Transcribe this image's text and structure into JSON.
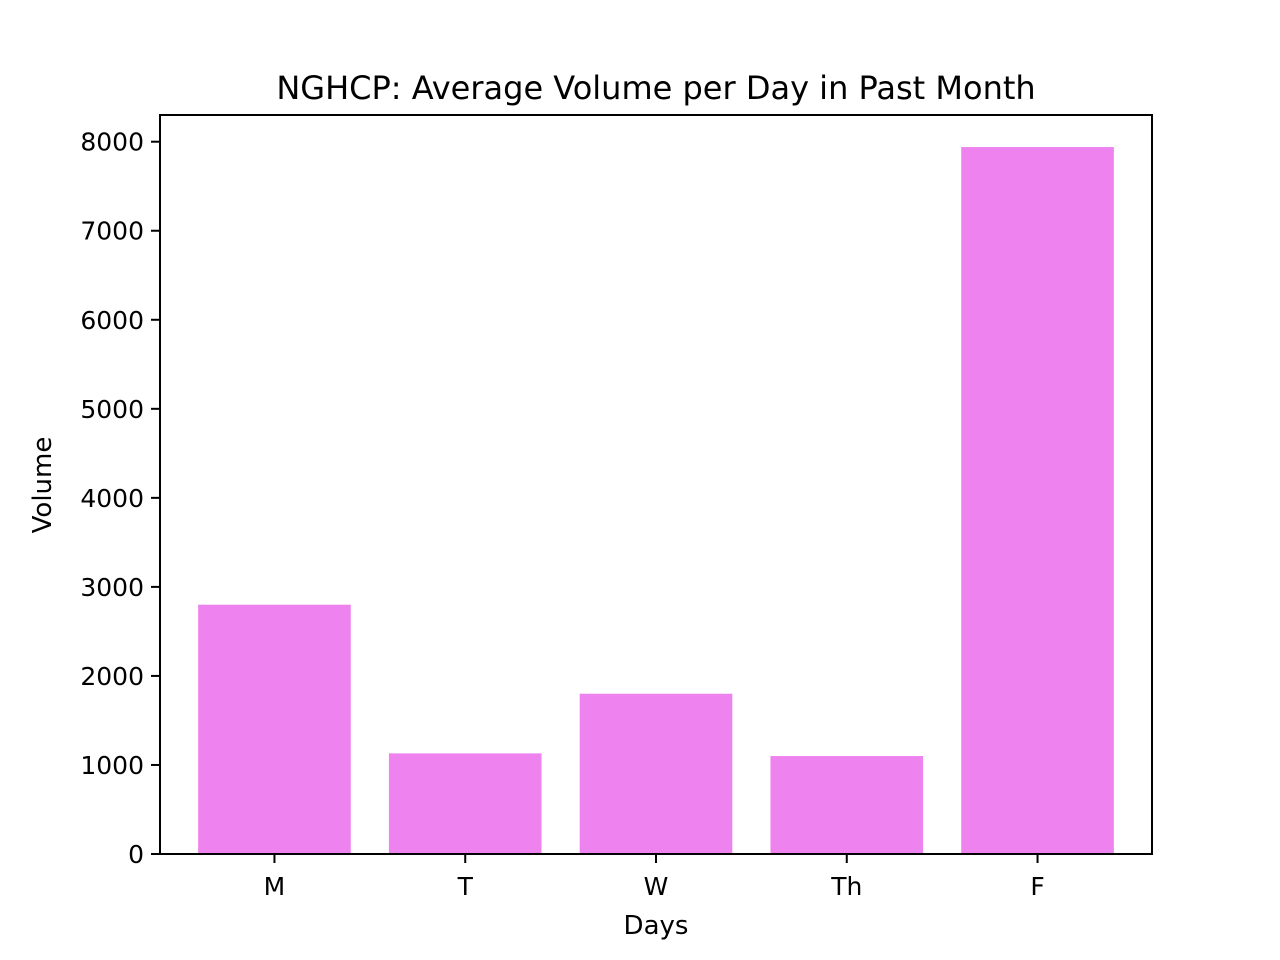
{
  "chart_data": {
    "type": "bar",
    "title": "NGHCP: Average Volume per Day in Past Month",
    "xlabel": "Days",
    "ylabel": "Volume",
    "categories": [
      "M",
      "T",
      "W",
      "Th",
      "F"
    ],
    "values": [
      2800,
      1130,
      1800,
      1100,
      7940
    ],
    "ylim": [
      0,
      8300
    ],
    "yticks": [
      0,
      1000,
      2000,
      3000,
      4000,
      5000,
      6000,
      7000,
      8000
    ],
    "bar_color": "#ee82ee",
    "grid": false,
    "legend": "none"
  }
}
